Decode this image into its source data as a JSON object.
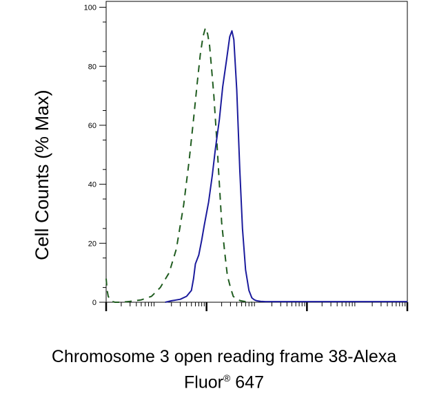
{
  "chart_data": {
    "type": "line",
    "title": "",
    "ylabel": "Cell Counts (% Max)",
    "xlabel_line1": "Chromosome 3 open reading frame 38-Alexa",
    "xlabel_line2_prefix": "Fluor",
    "xlabel_line2_sup": "®",
    "xlabel_line2_suffix": " 647",
    "x_scale": "log",
    "xlim": [
      1,
      1000000
    ],
    "ylim": [
      0,
      102
    ],
    "y_ticks": [
      "0",
      "20",
      "40",
      "60",
      "80",
      "100"
    ],
    "grid": false,
    "series": [
      {
        "style": "dashed",
        "color": "#1f5c1f",
        "x": [
          1,
          1.05,
          1.1,
          1.2,
          1.3,
          1.5,
          2,
          3,
          5,
          8,
          12,
          18,
          25,
          35,
          45,
          55,
          65,
          75,
          85,
          95,
          105,
          115,
          125,
          140,
          160,
          180,
          200,
          230,
          260,
          300,
          340,
          400,
          480,
          600,
          800
        ],
        "y": [
          8,
          4,
          2,
          0.8,
          0.3,
          0,
          0,
          0.3,
          0.8,
          2,
          5,
          10,
          18,
          33,
          48,
          62,
          74,
          84,
          90,
          93,
          91,
          87,
          80,
          70,
          55,
          40,
          27,
          17,
          9,
          5,
          2,
          1,
          0.5,
          0.2,
          0
        ]
      },
      {
        "style": "solid",
        "color": "#1a1a9c",
        "x": [
          15,
          20,
          30,
          40,
          50,
          55,
          60,
          70,
          80,
          90,
          110,
          130,
          150,
          180,
          210,
          250,
          290,
          320,
          350,
          400,
          460,
          520,
          600,
          700,
          800,
          900,
          1000,
          1200,
          1500,
          2000,
          5000,
          20000,
          100000,
          1000000
        ],
        "y": [
          0,
          0.5,
          1,
          2,
          4,
          8,
          13,
          16,
          21,
          26,
          34,
          43,
          52,
          62,
          73,
          82,
          90,
          92,
          89,
          72,
          45,
          25,
          11,
          4,
          1.5,
          0.8,
          0.5,
          0.3,
          0.2,
          0.2,
          0.2,
          0.2,
          0.2,
          0.2
        ]
      }
    ]
  }
}
